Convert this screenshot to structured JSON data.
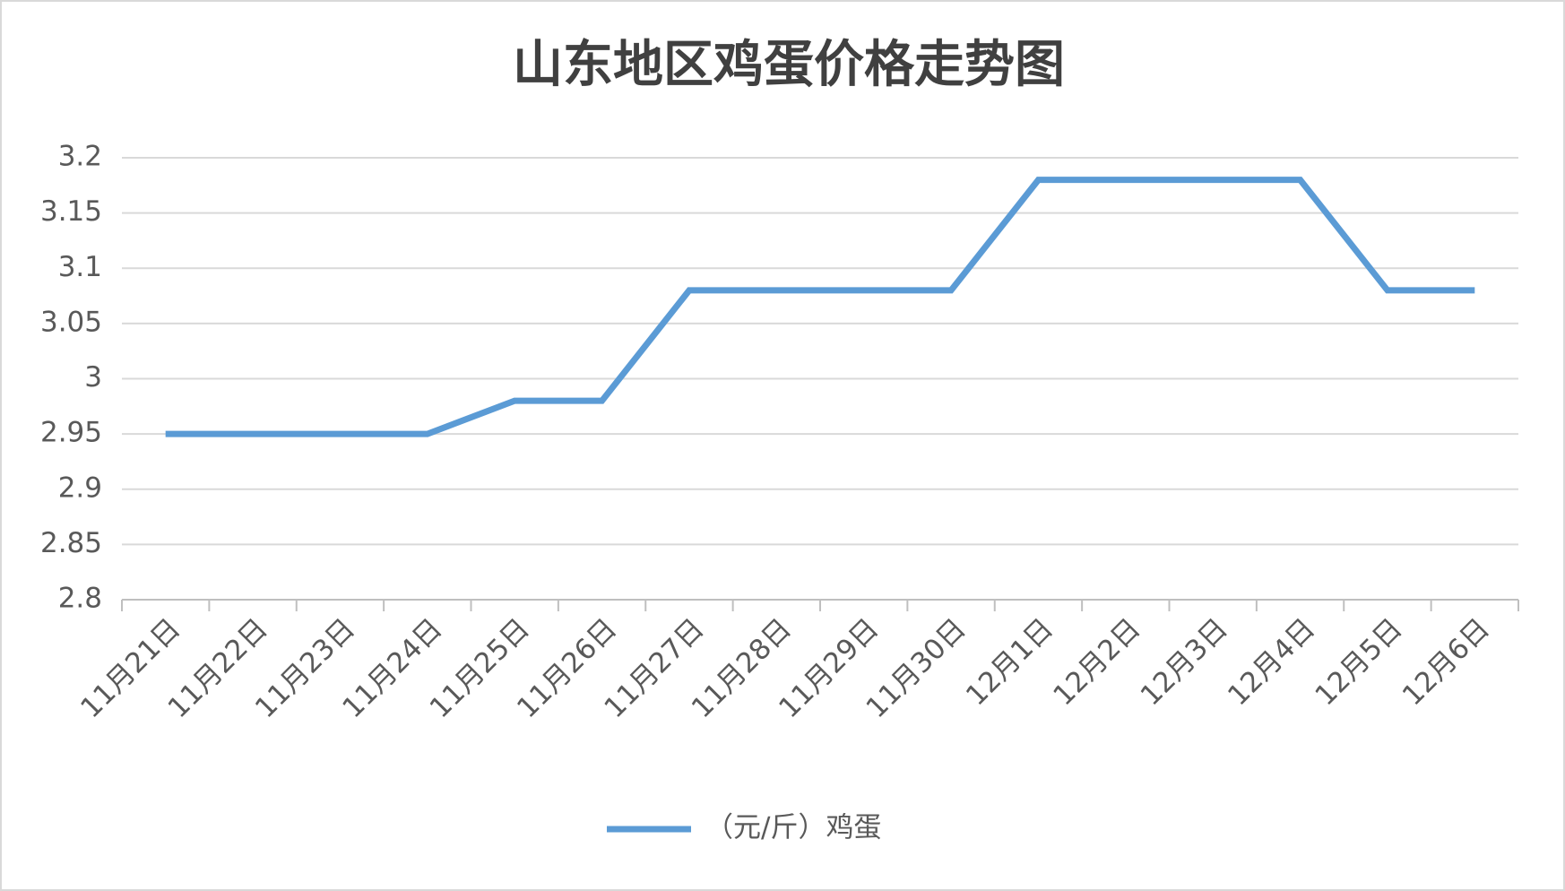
{
  "chart_data": {
    "type": "line",
    "title": "山东地区鸡蛋价格走势图",
    "categories": [
      "11月21日",
      "11月22日",
      "11月23日",
      "11月24日",
      "11月25日",
      "11月26日",
      "11月27日",
      "11月28日",
      "11月29日",
      "11月30日",
      "12月1日",
      "12月2日",
      "12月3日",
      "12月4日",
      "12月5日",
      "12月6日"
    ],
    "series": [
      {
        "name": "（元/斤）鸡蛋",
        "color": "#5b9bd5",
        "values": [
          2.95,
          2.95,
          2.95,
          2.95,
          2.98,
          2.98,
          3.08,
          3.08,
          3.08,
          3.08,
          3.18,
          3.18,
          3.18,
          3.18,
          3.08,
          3.08
        ]
      }
    ],
    "ylim": [
      2.8,
      3.2
    ],
    "yticks": [
      2.8,
      2.85,
      2.9,
      2.95,
      3,
      3.05,
      3.1,
      3.15,
      3.2
    ],
    "grid": true,
    "legend": "bottom"
  }
}
